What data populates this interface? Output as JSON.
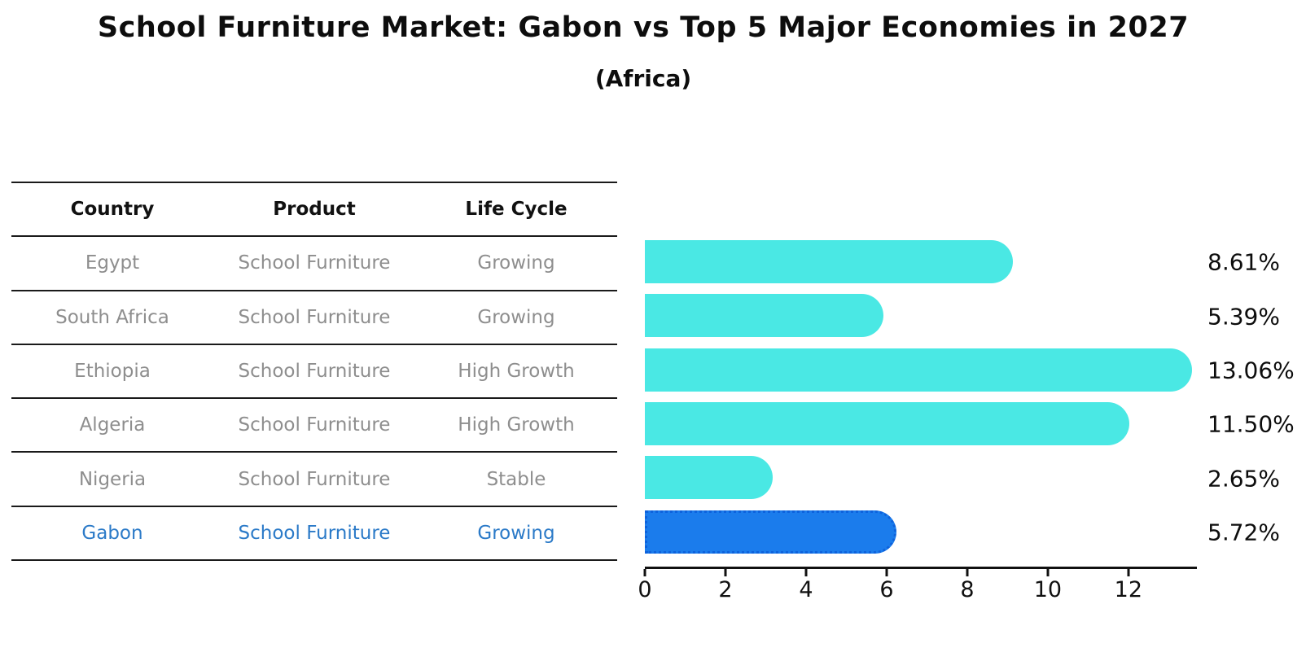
{
  "header": {
    "title": "School Furniture Market: Gabon vs Top 5 Major Economies in 2027",
    "subtitle": "(Africa)"
  },
  "table": {
    "columns": [
      "Country",
      "Product",
      "Life Cycle"
    ],
    "rows": [
      {
        "country": "Egypt",
        "product": "School Furniture",
        "life_cycle": "Growing"
      },
      {
        "country": "South Africa",
        "product": "School Furniture",
        "life_cycle": "Growing"
      },
      {
        "country": "Ethiopia",
        "product": "School Furniture",
        "life_cycle": "High Growth"
      },
      {
        "country": "Algeria",
        "product": "School Furniture",
        "life_cycle": "High Growth"
      },
      {
        "country": "Nigeria",
        "product": "School Furniture",
        "life_cycle": "Stable"
      },
      {
        "country": "Gabon",
        "product": "School Furniture",
        "life_cycle": "Growing"
      }
    ],
    "highlight_row": "Gabon"
  },
  "chart_data": {
    "type": "bar",
    "orientation": "horizontal",
    "categories": [
      "Egypt",
      "South Africa",
      "Ethiopia",
      "Algeria",
      "Nigeria",
      "Gabon"
    ],
    "values": [
      8.61,
      5.39,
      13.06,
      11.5,
      2.65,
      5.72
    ],
    "value_labels": [
      "8.61%",
      "5.39%",
      "13.06%",
      "11.50%",
      "2.65%",
      "5.72%"
    ],
    "x_ticks": [
      0,
      2,
      4,
      6,
      8,
      10,
      12
    ],
    "xlim": [
      0,
      13.7
    ],
    "highlight_index": 5,
    "grid": false,
    "legend": false,
    "title": "School Furniture Market: Gabon vs Top 5 Major Economies in 2027",
    "xlabel": "",
    "ylabel": "",
    "bar_color": "#4AE8E4",
    "highlight_bar_color": "#1B7CEC",
    "highlight_border_color": "#0E62DC"
  },
  "colors": {
    "background": "#FFFFFF",
    "title_text": "#0D0D0D",
    "table_line": "#1A1A1A",
    "table_header_text": "#111111",
    "table_body_text": "#8E8E8E",
    "highlight_text": "#2B7AC8",
    "axis": "#111111"
  }
}
